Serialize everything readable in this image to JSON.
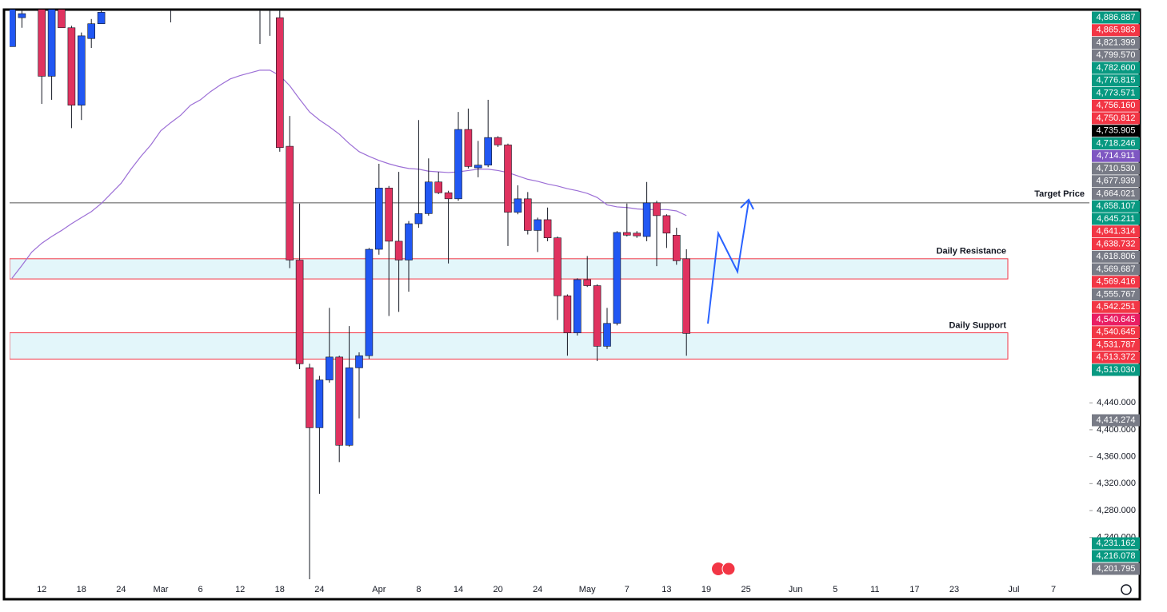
{
  "chart_data": {
    "type": "candlestick",
    "categories": [
      null,
      null,
      null,
      "12",
      null,
      null,
      null,
      "18",
      null,
      null,
      null,
      "24",
      null,
      null,
      null,
      "Mar",
      null,
      null,
      null,
      "6",
      null,
      null,
      null,
      "12",
      null,
      null,
      null,
      "18",
      null,
      null,
      null,
      "24",
      null,
      null,
      null,
      null,
      null,
      "Apr",
      null,
      null,
      null,
      "8",
      null,
      null,
      null,
      "14",
      null,
      null,
      null,
      "20",
      null,
      null,
      null,
      "24",
      null,
      null,
      null,
      null,
      "May",
      null,
      null,
      null,
      "7",
      null,
      null,
      null,
      "13",
      null,
      null,
      null,
      "19",
      null,
      null,
      null,
      "25",
      null,
      null,
      null,
      null,
      "Jun",
      null,
      null,
      null,
      "5",
      null,
      null,
      null,
      "11",
      null,
      null,
      null,
      "17",
      null,
      null,
      null,
      "23",
      null,
      null,
      null,
      null,
      null,
      "Jul",
      null,
      null,
      null,
      "7"
    ],
    "open": [
      4969,
      5012,
      null,
      5030,
      4925,
      5025,
      4997,
      4882,
      4981,
      5003,
      null,
      null,
      null,
      null,
      null,
      null,
      5030,
      null,
      null,
      null,
      null,
      null,
      null,
      null,
      null,
      5030,
      5035,
      5012,
      4821,
      4652,
      4492,
      4403,
      4474,
      4508,
      4377,
      4492,
      4510,
      4668,
      4759,
      4680,
      4652,
      4706,
      4721,
      4768,
      4752,
      4743,
      4846,
      4789,
      4793,
      4834,
      4823,
      4723,
      4743,
      4696,
      4712,
      4685,
      4599,
      4544,
      4623,
      4614,
      4524,
      4558,
      4693,
      4692,
      4687,
      4737,
      4718,
      4689,
      4654,
      null,
      null,
      null,
      null,
      null,
      null,
      null,
      null,
      null,
      null,
      null,
      null,
      null,
      null,
      null,
      null,
      null,
      null,
      null,
      null,
      null,
      null,
      null,
      null,
      null,
      null,
      null,
      null,
      null,
      null,
      null,
      null,
      null,
      null,
      null,
      null,
      null
    ],
    "high": [
      5035,
      5030,
      null,
      5040,
      5040,
      5035,
      5000,
      4990,
      5010,
      5030,
      null,
      null,
      null,
      null,
      null,
      null,
      5050,
      null,
      null,
      null,
      null,
      null,
      null,
      null,
      null,
      5050,
      5050,
      5030,
      4866,
      4736,
      4498,
      4480,
      4581,
      4510,
      4554,
      4515,
      4670,
      4795,
      4762,
      4783,
      4710,
      4860,
      4803,
      4783,
      4755,
      4872,
      4877,
      4829,
      4890,
      4836,
      4825,
      4763,
      4753,
      4715,
      4730,
      4687,
      4601,
      4625,
      4658,
      4616,
      4581,
      4695,
      4736,
      4695,
      4768,
      4740,
      4720,
      4700,
      4668,
      null,
      null,
      null,
      null,
      null,
      null,
      null,
      null,
      null,
      null,
      null,
      null,
      null,
      null,
      null,
      null,
      null,
      null,
      null,
      null,
      null,
      null,
      null,
      null,
      null,
      null,
      null,
      null,
      null,
      null,
      null,
      null,
      null,
      null,
      null,
      null,
      null
    ],
    "low": [
      4969,
      4997,
      null,
      4884,
      4890,
      4997,
      4848,
      4860,
      4967,
      5003,
      null,
      null,
      null,
      null,
      null,
      null,
      5005,
      null,
      null,
      null,
      null,
      null,
      null,
      null,
      null,
      4973,
      4985,
      4813,
      4640,
      4490,
      4178,
      4305,
      4470,
      4352,
      4375,
      4417,
      4505,
      4660,
      4569,
      4575,
      4605,
      4700,
      4718,
      4750,
      4647,
      4740,
      4788,
      4775,
      4790,
      4820,
      4673,
      4720,
      4690,
      4664,
      4680,
      4563,
      4510,
      4540,
      4612,
      4502,
      4520,
      4555,
      4687,
      4685,
      4680,
      4643,
      4670,
      4645,
      4510,
      null,
      null,
      null,
      null,
      null,
      null,
      null,
      null,
      null,
      null,
      null,
      null,
      null,
      null,
      null,
      null,
      null,
      null,
      null,
      null,
      null,
      null,
      null,
      null,
      null,
      null,
      null,
      null,
      null,
      null,
      null,
      null,
      null,
      null,
      null,
      null,
      null
    ],
    "close": [
      5025,
      5018,
      null,
      4925,
      5030,
      4997,
      4882,
      4985,
      5003,
      5020,
      null,
      null,
      null,
      null,
      null,
      null,
      5040,
      null,
      null,
      null,
      null,
      null,
      null,
      null,
      null,
      5040,
      5040,
      4819,
      4652,
      4498,
      4403,
      4474,
      4508,
      4377,
      4492,
      4510,
      4668,
      4759,
      4680,
      4652,
      4706,
      4721,
      4768,
      4752,
      4743,
      4846,
      4791,
      4793,
      4834,
      4823,
      4723,
      4743,
      4696,
      4712,
      4685,
      4599,
      4544,
      4623,
      4614,
      4524,
      4558,
      4693,
      4689,
      4688,
      4737,
      4718,
      4692,
      4651,
      4543,
      null,
      null,
      null,
      null,
      null,
      null,
      null,
      null,
      null,
      null,
      null,
      null,
      null,
      null,
      null,
      null,
      null,
      null,
      null,
      null,
      null,
      null,
      null,
      null,
      null,
      null,
      null,
      null,
      null,
      null,
      null,
      null,
      null,
      null,
      null,
      null,
      null
    ],
    "moving_average": {
      "color": "#9c6fd6",
      "values": [
        4625,
        4644,
        4664,
        4677,
        4687,
        4696,
        4706,
        4715,
        4724,
        4736,
        4751,
        4766,
        4787,
        4806,
        4823,
        4844,
        4856,
        4867,
        4882,
        4890,
        4902,
        4912,
        4921,
        4926,
        4930,
        4934,
        4934,
        4926,
        4911,
        4891,
        4872,
        4860,
        4850,
        4839,
        4825,
        4813,
        4806,
        4800,
        4795,
        4791,
        4788,
        4787,
        4784,
        4783,
        4782,
        4783,
        4785,
        4787,
        4787,
        4785,
        4782,
        4777,
        4772,
        4769,
        4765,
        4762,
        4758,
        4755,
        4751,
        4745,
        4734,
        4731,
        4730,
        4728,
        4727,
        4727,
        4727,
        4725,
        4718,
        null,
        null,
        null,
        null,
        null,
        null,
        null,
        null,
        null,
        null,
        null,
        null,
        null,
        null,
        null,
        null,
        null,
        null,
        null,
        null,
        null,
        null,
        null,
        null,
        null,
        null,
        null,
        null,
        null,
        null,
        null,
        null,
        null,
        null,
        null,
        null,
        null
      ]
    },
    "up_color": "#2157f3",
    "down_color": "#e0325f",
    "ylim": [
      4178,
      5024
    ],
    "yticks": [
      {
        "value": 4440,
        "label": "4,440.000"
      },
      {
        "value": 4400,
        "label": "4,400.000"
      },
      {
        "value": 4360,
        "label": "4,360.000"
      },
      {
        "value": 4320,
        "label": "4,320.000"
      },
      {
        "value": 4280,
        "label": "4,280.000"
      },
      {
        "value": 4240,
        "label": "4,240.000"
      }
    ],
    "levels": [
      {
        "name": "Target Price",
        "value": 4737
      }
    ],
    "zones": [
      {
        "name": "Daily Resistance",
        "range": [
          4624,
          4654
        ]
      },
      {
        "name": "Daily Support",
        "range": [
          4505,
          4544
        ]
      }
    ],
    "price_labels": [
      {
        "text": "4,886.887",
        "color": "#089981"
      },
      {
        "text": "4,865.983",
        "color": "#f23645"
      },
      {
        "text": "4,821.399",
        "color": "#787b86"
      },
      {
        "text": "4,799.570",
        "color": "#787b86"
      },
      {
        "text": "4,782.600",
        "color": "#089981"
      },
      {
        "text": "4,776.815",
        "color": "#089981"
      },
      {
        "text": "4,773.571",
        "color": "#089981"
      },
      {
        "text": "4,756.160",
        "color": "#f23645"
      },
      {
        "text": "4,750.812",
        "color": "#f23645"
      },
      {
        "text": "4,735.905",
        "color": "#000000"
      },
      {
        "text": "4,718.246",
        "color": "#089981"
      },
      {
        "text": "4,714.911",
        "color": "#7e57c2"
      },
      {
        "text": "4,710.530",
        "color": "#787b86"
      },
      {
        "text": "4,677.939",
        "color": "#787b86"
      },
      {
        "text": "4,664.021",
        "color": "#787b86"
      },
      {
        "text": "4,658.107",
        "color": "#089981"
      },
      {
        "text": "4,645.211",
        "color": "#089981"
      },
      {
        "text": "4,641.314",
        "color": "#f23645"
      },
      {
        "text": "4,638.732",
        "color": "#f23645"
      },
      {
        "text": "4,618.806",
        "color": "#787b86"
      },
      {
        "text": "4,569.687",
        "color": "#787b86"
      },
      {
        "text": "4,569.416",
        "color": "#f23645"
      },
      {
        "text": "4,555.767",
        "color": "#787b86"
      },
      {
        "text": "4,542.251",
        "color": "#f23645"
      },
      {
        "text": "4,540.645",
        "color": "#e91e63"
      },
      {
        "text": "4,540.645",
        "color": "#f23645"
      },
      {
        "text": "4,531.787",
        "color": "#f23645"
      },
      {
        "text": "4,513.372",
        "color": "#f23645"
      },
      {
        "text": "4,513.030",
        "color": "#089981"
      },
      {
        "text": "4,414.274",
        "color": "#787b86"
      },
      {
        "text": "4,231.162",
        "color": "#089981"
      },
      {
        "text": "4,216.078",
        "color": "#089981"
      },
      {
        "text": "4,201.795",
        "color": "#787b86"
      }
    ]
  }
}
